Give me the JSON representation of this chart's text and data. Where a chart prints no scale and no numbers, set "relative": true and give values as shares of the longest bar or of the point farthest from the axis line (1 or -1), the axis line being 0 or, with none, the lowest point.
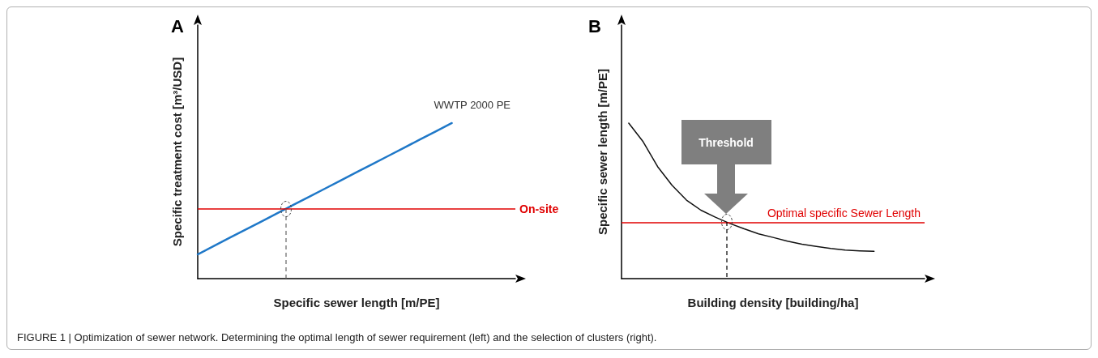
{
  "chart_data": [
    {
      "type": "line",
      "title": "A",
      "xlabel": "Specific sewer length [m/PE]",
      "ylabel": "Specific treatment cost [m³/USD]",
      "relative": true,
      "grid": false,
      "legend": false,
      "marker": "none",
      "line_style": "solid",
      "categories": [
        null,
        null,
        null,
        null,
        null,
        null,
        null,
        null,
        null,
        null,
        null,
        null,
        null,
        null,
        null,
        null,
        null,
        null,
        null,
        null,
        null
      ],
      "series": [
        {
          "name": "WWTP 2000 PE",
          "color": "#1f78c8",
          "values": [
            0.156,
            0.209,
            0.262,
            0.314,
            0.367,
            0.42,
            0.473,
            0.525,
            0.578,
            0.631,
            0.684,
            0.736,
            0.789,
            0.842,
            0.895,
            0.947,
            1,
            null,
            null,
            null,
            null
          ]
        }
      ],
      "ref_lines": [
        {
          "axis": "y",
          "value": 0.45,
          "label": "On-site",
          "color": "#e00000",
          "line_style": "solid"
        }
      ],
      "annotations": [
        "FIGURE 1 | Optimization of sewer network. Determining the optimal length of sewer requirement (left) and the selection of clusters (right)."
      ]
    },
    {
      "type": "line",
      "title": "B",
      "xlabel": "Building density [building/ha]",
      "ylabel": "Specific sewer length [m/PE]",
      "relative": true,
      "grid": false,
      "legend": false,
      "marker": "none",
      "line_style": "solid",
      "categories": [
        null,
        null,
        null,
        null,
        null,
        null,
        null,
        null,
        null,
        null,
        null,
        null,
        null,
        null,
        null,
        null,
        null,
        null,
        null,
        null,
        null
      ],
      "series": [
        {
          "color": "#111111",
          "values": [
            1,
            0.88,
            0.72,
            0.6,
            0.505,
            0.44,
            0.395,
            0.355,
            0.32,
            0.288,
            0.265,
            0.241,
            0.221,
            0.207,
            0.194,
            0.184,
            0.179,
            0.176,
            null,
            null,
            null
          ]
        }
      ],
      "ref_lines": [
        {
          "axis": "y",
          "value": 0.363,
          "label": "Optimal specific Sewer Length",
          "color": "#e00000",
          "line_style": "solid"
        }
      ],
      "annotations": [
        "Threshold"
      ]
    }
  ]
}
